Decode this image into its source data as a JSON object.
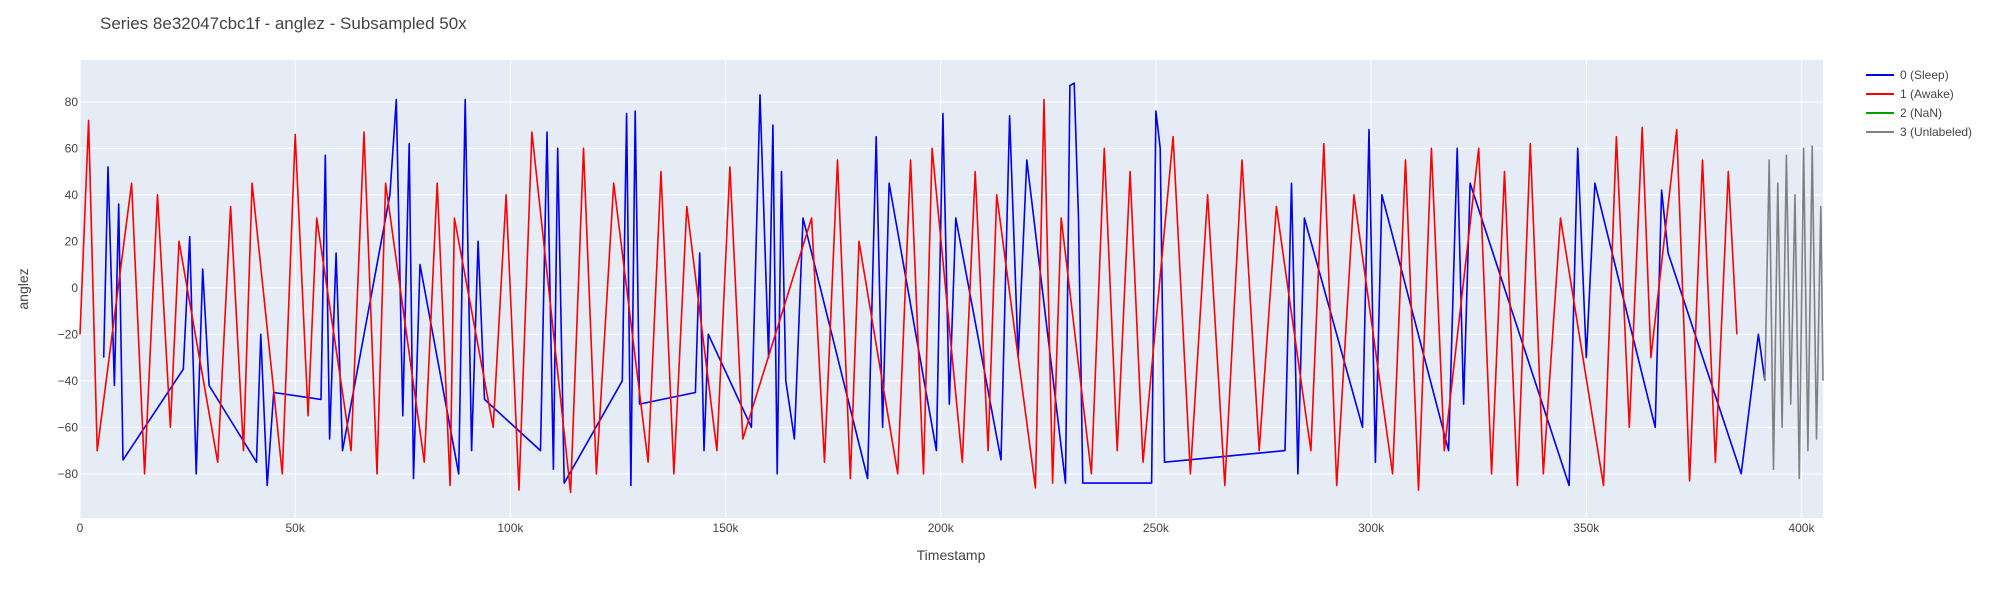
{
  "chart_data": {
    "type": "line",
    "title": "Series 8e32047cbc1f - anglez - Subsampled 50x",
    "xlabel": "Timestamp",
    "ylabel": "anglez",
    "xlim": [
      0,
      405000
    ],
    "ylim": [
      -99,
      98
    ],
    "x_ticks": [
      {
        "value": 0,
        "label": "0"
      },
      {
        "value": 50000,
        "label": "50k"
      },
      {
        "value": 100000,
        "label": "100k"
      },
      {
        "value": 150000,
        "label": "150k"
      },
      {
        "value": 200000,
        "label": "200k"
      },
      {
        "value": 250000,
        "label": "250k"
      },
      {
        "value": 300000,
        "label": "300k"
      },
      {
        "value": 350000,
        "label": "350k"
      },
      {
        "value": 400000,
        "label": "400k"
      }
    ],
    "y_ticks": [
      {
        "value": 80,
        "label": "80"
      },
      {
        "value": 60,
        "label": "60"
      },
      {
        "value": 40,
        "label": "40"
      },
      {
        "value": 20,
        "label": "20"
      },
      {
        "value": 0,
        "label": "0"
      },
      {
        "value": -20,
        "label": "−20"
      },
      {
        "value": -40,
        "label": "−40"
      },
      {
        "value": -60,
        "label": "−60"
      },
      {
        "value": -80,
        "label": "−80"
      }
    ],
    "grid": true,
    "legend_position": "top-right",
    "plot_background": "#e5ecf6",
    "series": [
      {
        "name": "0 (Sleep)",
        "color": "#0000ee",
        "x": [
          5500,
          6500,
          8000,
          9000,
          10000,
          24000,
          25500,
          27000,
          28500,
          30000,
          41000,
          42000,
          43500,
          45000,
          56000,
          57000,
          58000,
          59500,
          61000,
          72000,
          73500,
          75000,
          76500,
          77500,
          79000,
          88000,
          89500,
          91000,
          92500,
          94000,
          107000,
          108500,
          110000,
          111000,
          112500,
          126000,
          127000,
          128000,
          129000,
          130000,
          143000,
          144000,
          145000,
          146000,
          156000,
          158000,
          160000,
          161000,
          162000,
          163000,
          164000,
          166000,
          168000,
          183000,
          185000,
          186500,
          188000,
          199000,
          200500,
          202000,
          203500,
          214000,
          216000,
          218000,
          220000,
          229000,
          230000,
          231000,
          232000,
          233000,
          249000,
          250000,
          251000,
          252000,
          280000,
          281500,
          283000,
          284500,
          298000,
          299500,
          301000,
          302500,
          318000,
          320000,
          321500,
          323000,
          346000,
          348000,
          350000,
          352000,
          366000,
          367500,
          369000,
          386000,
          388000,
          390000,
          391500
        ],
        "y": [
          -30,
          52,
          -42,
          36,
          -74,
          -35,
          22,
          -80,
          8,
          -42,
          -75,
          -20,
          -85,
          -45,
          -48,
          57,
          -65,
          15,
          -70,
          40,
          81,
          -55,
          62,
          -82,
          10,
          -80,
          81,
          -70,
          20,
          -48,
          -70,
          67,
          -78,
          60,
          -84,
          -40,
          75,
          -85,
          76,
          -50,
          -45,
          15,
          -70,
          -20,
          -60,
          83,
          -30,
          70,
          -80,
          50,
          -40,
          -65,
          30,
          -82,
          65,
          -60,
          45,
          -70,
          75,
          -50,
          30,
          -74,
          74,
          -30,
          55,
          -84,
          87,
          88,
          30,
          -84,
          -84,
          76,
          60,
          -75,
          -70,
          45,
          -80,
          30,
          -60,
          68,
          -75,
          40,
          -70,
          60,
          -50,
          45,
          -85,
          60,
          -30,
          45,
          -60,
          42,
          15,
          -80,
          -50,
          -20,
          -40
        ]
      },
      {
        "name": "1 (Awake)",
        "color": "#ff0000",
        "x": [
          0,
          2000,
          4000,
          12000,
          15000,
          18000,
          21000,
          23000,
          32000,
          35000,
          38000,
          40000,
          47000,
          50000,
          53000,
          55000,
          63000,
          66000,
          69000,
          71000,
          80000,
          83000,
          86000,
          87000,
          96000,
          99000,
          102000,
          105000,
          114000,
          117000,
          120000,
          124000,
          132000,
          135000,
          138000,
          141000,
          148000,
          151000,
          154000,
          170000,
          173000,
          176000,
          179000,
          181000,
          190000,
          193000,
          196000,
          198000,
          205000,
          208000,
          211000,
          213000,
          222000,
          224000,
          226000,
          228000,
          235000,
          238000,
          241000,
          244000,
          247000,
          254000,
          258000,
          262000,
          266000,
          270000,
          274000,
          278000,
          286000,
          289000,
          292000,
          296000,
          305000,
          308000,
          311000,
          314000,
          317000,
          325000,
          328000,
          331000,
          334000,
          337000,
          340000,
          344000,
          354000,
          357000,
          360000,
          363000,
          365000,
          371000,
          374000,
          377000,
          380000,
          383000,
          385000
        ],
        "y": [
          -20,
          72,
          -70,
          45,
          -80,
          40,
          -60,
          20,
          -75,
          35,
          -70,
          45,
          -80,
          66,
          -55,
          30,
          -70,
          67,
          -80,
          45,
          -75,
          45,
          -85,
          30,
          -60,
          40,
          -87,
          67,
          -88,
          60,
          -80,
          45,
          -75,
          50,
          -80,
          35,
          -70,
          52,
          -65,
          30,
          -75,
          55,
          -82,
          20,
          -80,
          55,
          -80,
          60,
          -75,
          50,
          -70,
          40,
          -86,
          81,
          -84,
          30,
          -80,
          60,
          -70,
          50,
          -75,
          65,
          -80,
          40,
          -85,
          55,
          -70,
          35,
          -70,
          62,
          -85,
          40,
          -80,
          55,
          -87,
          60,
          -70,
          60,
          -80,
          50,
          -85,
          62,
          -80,
          30,
          -85,
          65,
          -60,
          69,
          -30,
          68,
          -83,
          55,
          -75,
          50,
          -20
        ]
      },
      {
        "name": "2 (NaN)",
        "color": "#00a000",
        "x": [],
        "y": []
      },
      {
        "name": "3 (Unlabeled)",
        "color": "#808080",
        "x": [
          391500,
          392500,
          393500,
          394500,
          395500,
          396500,
          397500,
          398500,
          399500,
          400500,
          401500,
          402500,
          403500,
          404500,
          405000
        ],
        "y": [
          -40,
          55,
          -78,
          45,
          -60,
          57,
          -50,
          40,
          -82,
          60,
          -70,
          61,
          -65,
          35,
          -40
        ]
      }
    ]
  }
}
